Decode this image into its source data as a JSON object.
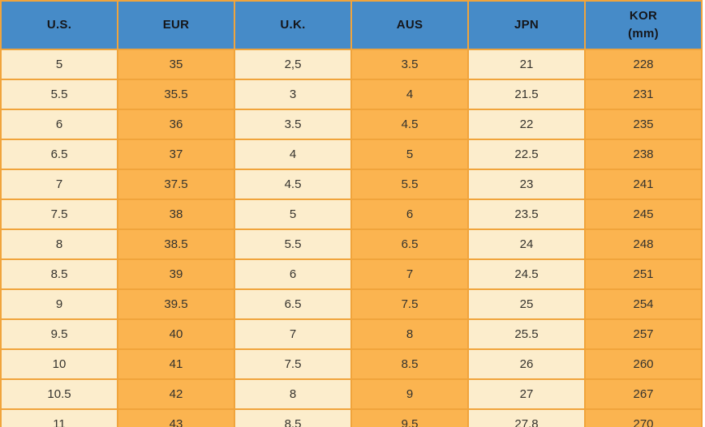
{
  "chart_data": {
    "type": "table",
    "columns": [
      "U.S.",
      "EUR",
      "U.K.",
      "AUS",
      "JPN",
      "KOR\n(mm)"
    ],
    "rows": [
      [
        "5",
        "35",
        "2,5",
        "3.5",
        "21",
        "228"
      ],
      [
        "5.5",
        "35.5",
        "3",
        "4",
        "21.5",
        "231"
      ],
      [
        "6",
        "36",
        "3.5",
        "4.5",
        "22",
        "235"
      ],
      [
        "6.5",
        "37",
        "4",
        "5",
        "22.5",
        "238"
      ],
      [
        "7",
        "37.5",
        "4.5",
        "5.5",
        "23",
        "241"
      ],
      [
        "7.5",
        "38",
        "5",
        "6",
        "23.5",
        "245"
      ],
      [
        "8",
        "38.5",
        "5.5",
        "6.5",
        "24",
        "248"
      ],
      [
        "8.5",
        "39",
        "6",
        "7",
        "24.5",
        "251"
      ],
      [
        "9",
        "39.5",
        "6.5",
        "7.5",
        "25",
        "254"
      ],
      [
        "9.5",
        "40",
        "7",
        "8",
        "25.5",
        "257"
      ],
      [
        "10",
        "41",
        "7.5",
        "8.5",
        "26",
        "260"
      ],
      [
        "10.5",
        "42",
        "8",
        "9",
        "27",
        "267"
      ],
      [
        "11",
        "43",
        "8.5",
        "9.5",
        "27.8",
        "270"
      ]
    ],
    "layout": {
      "grid": true,
      "header_row": true,
      "light_columns": [
        0,
        2,
        4
      ],
      "orange_columns": [
        1,
        3,
        5
      ]
    }
  },
  "colors": {
    "header_bg": "#468BC8",
    "header_text": "#15161a",
    "cell_text": "#35332e",
    "light_cell_bg": "#FCEDCC",
    "orange_cell_bg": "#FBB450",
    "border": "#F0A43C",
    "page_bg": "#FFFFFF"
  }
}
